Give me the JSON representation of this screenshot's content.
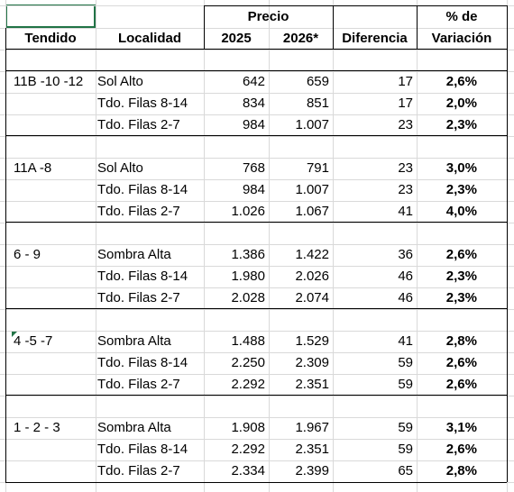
{
  "header": {
    "precio": "Precio",
    "pct_line1": "% de",
    "pct_line2": "Variación",
    "tendido": "Tendido",
    "localidad": "Localidad",
    "y2025": "2025",
    "y2026": "2026*",
    "diferencia": "Diferencia"
  },
  "groups": [
    {
      "tendido": "11B -10 -12",
      "rows": [
        {
          "localidad": "Sol Alto",
          "p2025": "642",
          "p2026": "659",
          "dif": "17",
          "pct": "2,6%"
        },
        {
          "localidad": "Tdo. Filas 8-14",
          "p2025": "834",
          "p2026": "851",
          "dif": "17",
          "pct": "2,0%"
        },
        {
          "localidad": "Tdo. Filas 2-7",
          "p2025": "984",
          "p2026": "1.007",
          "dif": "23",
          "pct": "2,3%"
        }
      ]
    },
    {
      "tendido": "11A -8",
      "rows": [
        {
          "localidad": "Sol Alto",
          "p2025": "768",
          "p2026": "791",
          "dif": "23",
          "pct": "3,0%"
        },
        {
          "localidad": "Tdo. Filas 8-14",
          "p2025": "984",
          "p2026": "1.007",
          "dif": "23",
          "pct": "2,3%"
        },
        {
          "localidad": "Tdo. Filas 2-7",
          "p2025": "1.026",
          "p2026": "1.067",
          "dif": "41",
          "pct": "4,0%"
        }
      ]
    },
    {
      "tendido": "6 - 9",
      "rows": [
        {
          "localidad": "Sombra Alta",
          "p2025": "1.386",
          "p2026": "1.422",
          "dif": "36",
          "pct": "2,6%"
        },
        {
          "localidad": "Tdo. Filas 8-14",
          "p2025": "1.980",
          "p2026": "2.026",
          "dif": "46",
          "pct": "2,3%"
        },
        {
          "localidad": "Tdo. Filas 2-7",
          "p2025": "2.028",
          "p2026": "2.074",
          "dif": "46",
          "pct": "2,3%"
        }
      ]
    },
    {
      "tendido": "4 -5 -7",
      "rows": [
        {
          "localidad": "Sombra Alta",
          "p2025": "1.488",
          "p2026": "1.529",
          "dif": "41",
          "pct": "2,8%"
        },
        {
          "localidad": "Tdo. Filas 8-14",
          "p2025": "2.250",
          "p2026": "2.309",
          "dif": "59",
          "pct": "2,6%"
        },
        {
          "localidad": "Tdo. Filas 2-7",
          "p2025": "2.292",
          "p2026": "2.351",
          "dif": "59",
          "pct": "2,6%"
        }
      ]
    },
    {
      "tendido": "1 - 2 - 3",
      "rows": [
        {
          "localidad": "Sombra Alta",
          "p2025": "1.908",
          "p2026": "1.967",
          "dif": "59",
          "pct": "3,1%"
        },
        {
          "localidad": "Tdo. Filas 8-14",
          "p2025": "2.292",
          "p2026": "2.351",
          "dif": "59",
          "pct": "2,6%"
        },
        {
          "localidad": "Tdo. Filas 2-7",
          "p2025": "2.334",
          "p2026": "2.399",
          "dif": "65",
          "pct": "2,8%"
        }
      ]
    }
  ],
  "colors": {
    "selection": "#217346",
    "gridline": "#d9d9d9",
    "border": "#000000"
  }
}
